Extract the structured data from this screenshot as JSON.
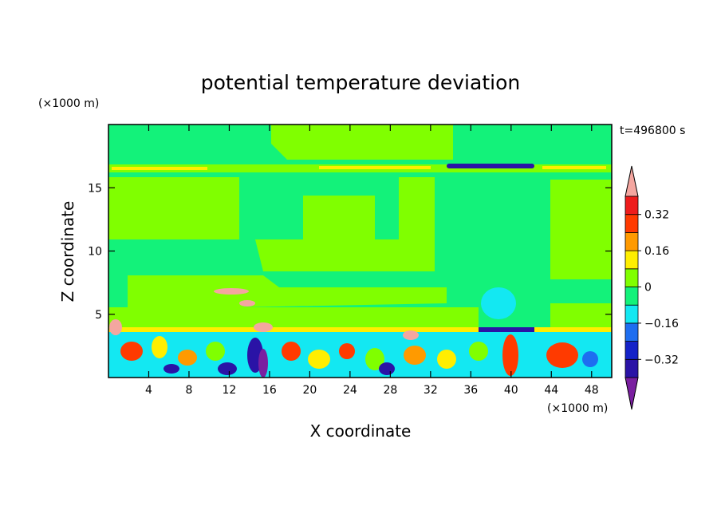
{
  "chart_data": {
    "type": "heatmap",
    "title": "potential temperature deviation",
    "xlabel": "X coordinate",
    "ylabel": "Z coordinate",
    "x_unit": "(×1000 m)",
    "y_unit": "(×1000 m)",
    "time_label": "t=496800 s",
    "xlim": [
      0,
      50
    ],
    "ylim": [
      0,
      20
    ],
    "x_ticks": [
      4,
      8,
      12,
      16,
      20,
      24,
      28,
      32,
      36,
      40,
      44,
      48
    ],
    "y_ticks": [
      5,
      10,
      15
    ],
    "colorbar": {
      "levels": [
        -0.4,
        -0.32,
        -0.24,
        -0.16,
        -0.08,
        0,
        0.08,
        0.16,
        0.24,
        0.32,
        0.4
      ],
      "labeled_levels": [
        0.32,
        0.16,
        0,
        -0.16,
        -0.32
      ],
      "colors": [
        "#7a1fa0",
        "#2a13a6",
        "#1422c8",
        "#1e6ef0",
        "#13e8f2",
        "#13f27a",
        "#80ff00",
        "#ffee00",
        "#ff9a00",
        "#ff3a00",
        "#ee1c1c",
        "#f4a6a0"
      ]
    }
  },
  "colors": {
    "bg_green": "#80ff00",
    "teal": "#13f27a",
    "cyan": "#13e8f2",
    "blue": "#1e6ef0",
    "dark_blue": "#2a13a6",
    "purple": "#7a1fa0",
    "yellow": "#ffee00",
    "orange": "#ff9a00",
    "red": "#ff3a00",
    "pink": "#f4a6a0"
  }
}
